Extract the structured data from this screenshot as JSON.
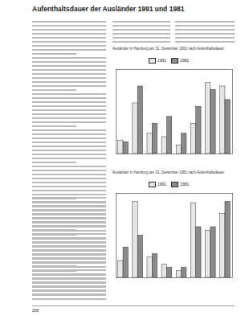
{
  "title": "Aufenthaltsdauer der Ausländer 1991 und 1981",
  "footer": "206",
  "chart_data": [
    {
      "type": "bar",
      "title": "Ausländer in Hamburg am 31. Dezember 1991 nach Aufenthaltsdauer",
      "categories": [
        null,
        null,
        null,
        null,
        null,
        null,
        null,
        null
      ],
      "series": [
        {
          "name": "1991",
          "color": "#e6e6e6",
          "values": [
            8,
            30,
            12,
            10,
            5,
            18,
            42,
            40
          ]
        },
        {
          "name": "1981",
          "color": "#8a8a8a",
          "values": [
            7,
            40,
            18,
            22,
            12,
            28,
            38,
            32
          ]
        }
      ],
      "ylim": [
        0,
        50
      ],
      "tick_labels": false,
      "legend": "top"
    },
    {
      "type": "bar",
      "title": "Ausländer in Hamburg am 31. Dezember 1981 nach Aufenthaltsdauer",
      "categories": [
        null,
        null,
        null,
        null,
        null,
        null,
        null,
        null
      ],
      "series": [
        {
          "name": "1991",
          "color": "#e6e6e6",
          "values": [
            10,
            45,
            12,
            8,
            4,
            44,
            28,
            38
          ]
        },
        {
          "name": "1981",
          "color": "#8a8a8a",
          "values": [
            18,
            25,
            14,
            6,
            6,
            30,
            30,
            45
          ]
        }
      ],
      "ylim": [
        0,
        50
      ],
      "tick_labels": false,
      "legend": "top"
    }
  ]
}
